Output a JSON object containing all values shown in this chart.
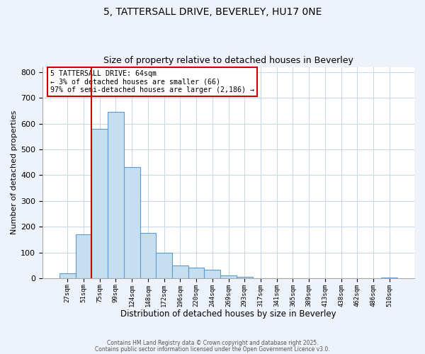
{
  "title_line1": "5, TATTERSALL DRIVE, BEVERLEY, HU17 0NE",
  "title_line2": "Size of property relative to detached houses in Beverley",
  "xlabel": "Distribution of detached houses by size in Beverley",
  "ylabel": "Number of detached properties",
  "bar_labels": [
    "27sqm",
    "51sqm",
    "75sqm",
    "99sqm",
    "124sqm",
    "148sqm",
    "172sqm",
    "196sqm",
    "220sqm",
    "244sqm",
    "269sqm",
    "293sqm",
    "317sqm",
    "341sqm",
    "365sqm",
    "389sqm",
    "413sqm",
    "438sqm",
    "462sqm",
    "486sqm",
    "510sqm"
  ],
  "bar_values": [
    20,
    170,
    580,
    645,
    430,
    175,
    100,
    50,
    40,
    33,
    10,
    5,
    1,
    0,
    0,
    0,
    0,
    0,
    0,
    0,
    2
  ],
  "bar_color": "#c5dff0",
  "bar_edge_color": "#5b9bd5",
  "vline_x": 1.5,
  "vline_color": "#cc0000",
  "annotation_title": "5 TATTERSALL DRIVE: 64sqm",
  "annotation_line2": "← 3% of detached houses are smaller (66)",
  "annotation_line3": "97% of semi-detached houses are larger (2,186) →",
  "annotation_box_edgecolor": "#cc0000",
  "ylim": [
    0,
    820
  ],
  "yticks": [
    0,
    100,
    200,
    300,
    400,
    500,
    600,
    700,
    800
  ],
  "footer_line1": "Contains HM Land Registry data © Crown copyright and database right 2025.",
  "footer_line2": "Contains public sector information licensed under the Open Government Licence v3.0.",
  "bg_color": "#eef2fb",
  "plot_bg_color": "#ffffff",
  "grid_color": "#c8d4e8"
}
